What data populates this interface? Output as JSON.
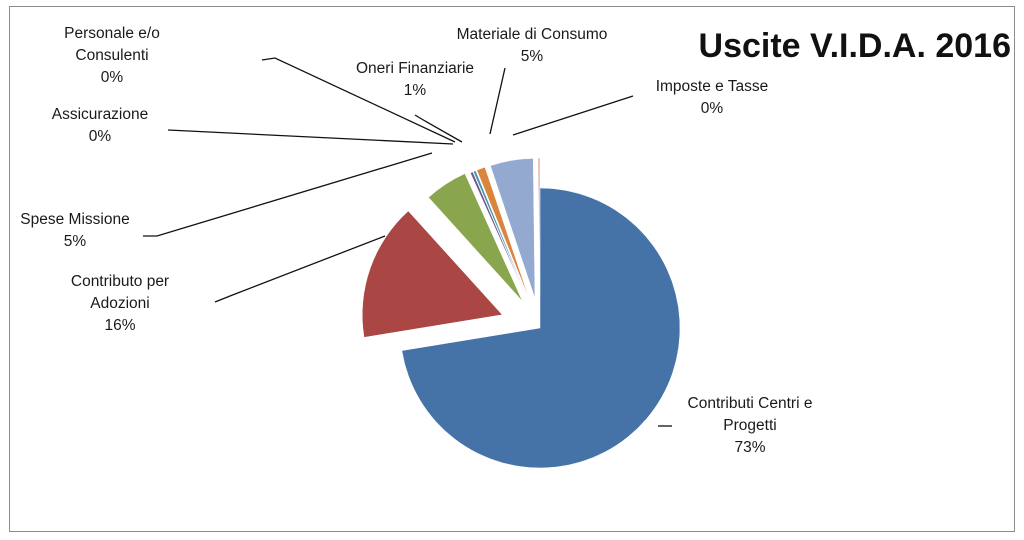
{
  "chart_data": {
    "type": "pie",
    "title": "Uscite V.I.D.A. 2016",
    "slices": [
      {
        "label": "Contributi Centri e Progetti",
        "value": 73,
        "value_label": "73%",
        "color": "#4572a7"
      },
      {
        "label": "Contributo per Adozioni",
        "value": 16,
        "value_label": "16%",
        "color": "#aa4643"
      },
      {
        "label": "Spese Missione",
        "value": 5,
        "value_label": "5%",
        "color": "#89a54e"
      },
      {
        "label": "Assicurazione",
        "value": 0.3,
        "value_label": "0%",
        "color": "#71588f"
      },
      {
        "label": "Personale e/o Consulenti",
        "value": 0.3,
        "value_label": "0%",
        "color": "#4198af"
      },
      {
        "label": "Oneri Finanziarie",
        "value": 1,
        "value_label": "1%",
        "color": "#db843d"
      },
      {
        "label": "Materiale di Consumo",
        "value": 5,
        "value_label": "5%",
        "color": "#93a9cf"
      },
      {
        "label": "Imposte e Tasse",
        "value": 0.2,
        "value_label": "0%",
        "color": "#d19392"
      }
    ],
    "legend": "none",
    "data_labels": "outside with leader lines"
  }
}
